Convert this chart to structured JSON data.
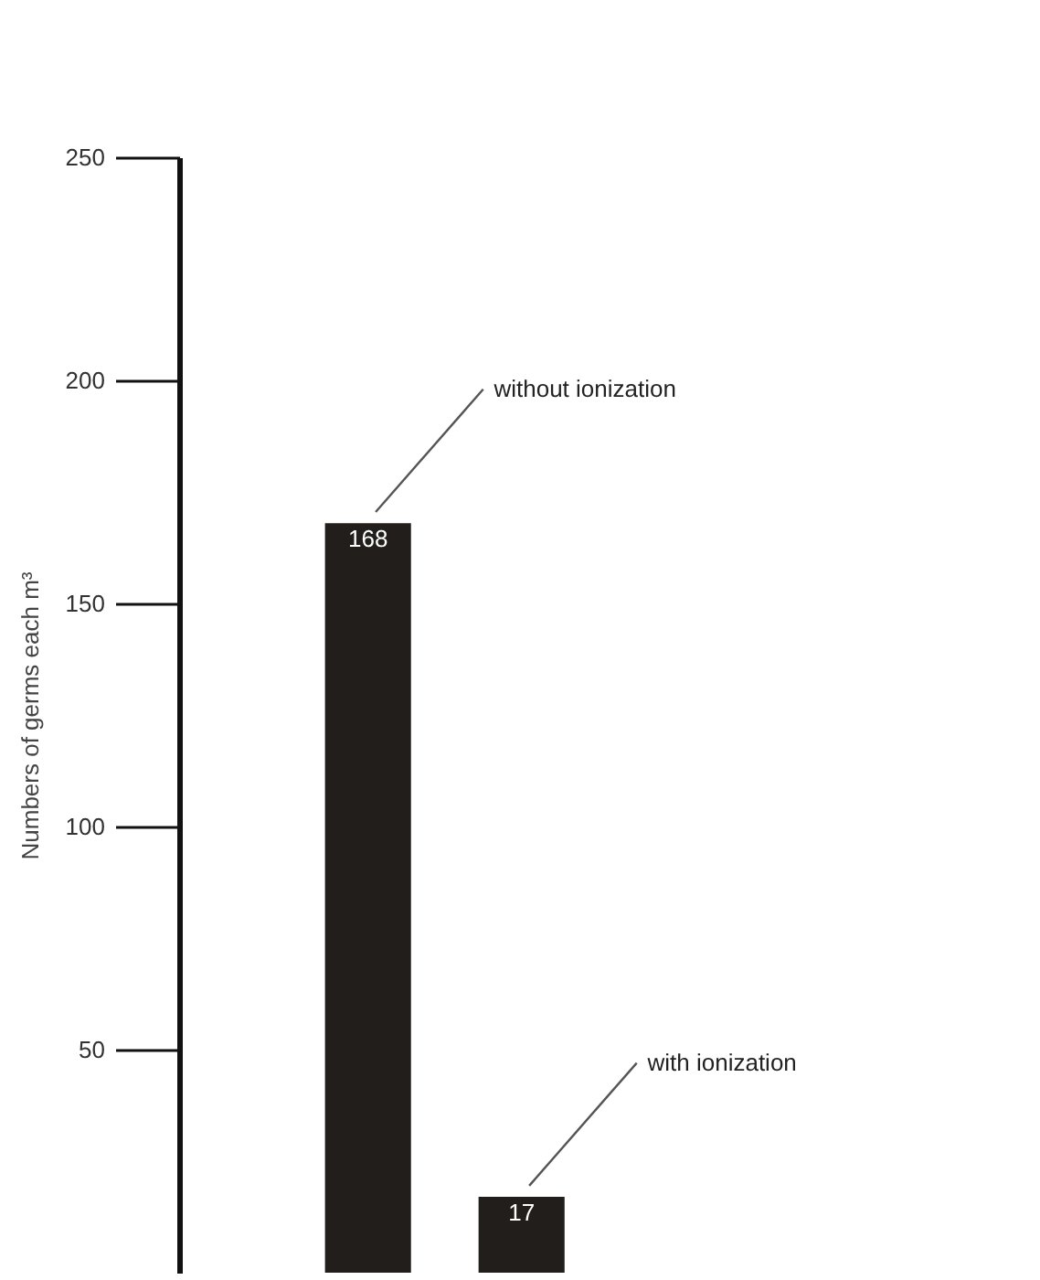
{
  "chart_data": {
    "type": "bar",
    "ylabel": "Numbers of germs each m³",
    "categories": [
      null,
      null
    ],
    "values": [
      168,
      17
    ],
    "color": "#221e1b",
    "ylim": [
      0,
      250
    ],
    "yticks": [
      50,
      100,
      150,
      200,
      250
    ],
    "data_labels": true,
    "grid": false,
    "tick_labels": "y",
    "annotations": [
      "without ionization",
      "with ionization"
    ]
  }
}
